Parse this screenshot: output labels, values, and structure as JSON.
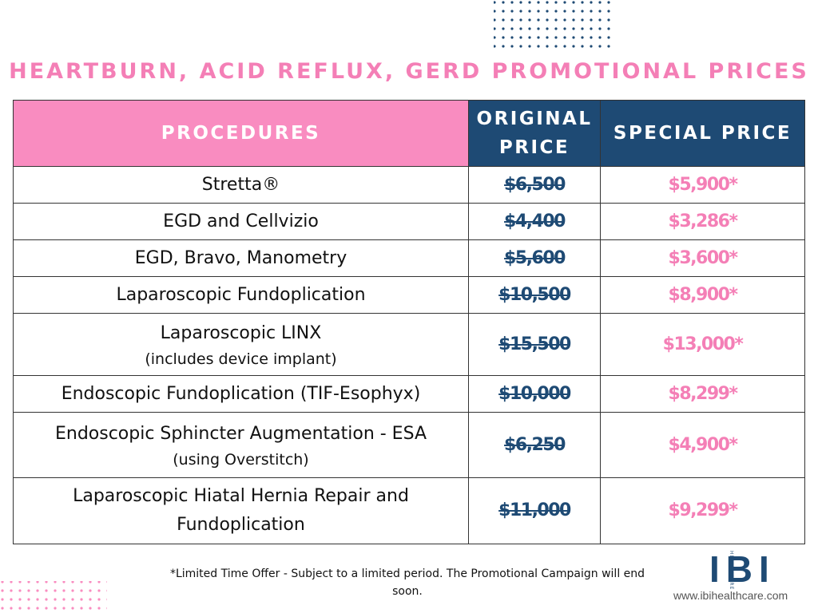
{
  "header": {
    "title": "HEARTBURN, ACID REFLUX, GERD PROMOTIONAL PRICES"
  },
  "table": {
    "columns": [
      "PROCEDURES",
      "ORIGINAL PRICE",
      "SPECIAL PRICE"
    ],
    "rows": [
      {
        "procedure": "Stretta®",
        "original": "$6,500",
        "special": "$5,900*"
      },
      {
        "procedure": "EGD and Cellvizio",
        "original": "$4,400",
        "special": "$3,286*"
      },
      {
        "procedure": "EGD, Bravo, Manometry",
        "original": "$5,600",
        "special": "$3,600*"
      },
      {
        "procedure": "Laparoscopic Fundoplication",
        "original": "$10,500",
        "special": "$8,900*"
      },
      {
        "procedure": "Laparoscopic LINX",
        "note": "(includes device implant)",
        "original": "$15,500",
        "special": "$13,000*"
      },
      {
        "procedure": "Endoscopic Fundoplication (TIF-Esophyx)",
        "original": "$10,000",
        "special": "$8,299*"
      },
      {
        "procedure": "Endoscopic Sphincter Augmentation - ESA",
        "note": "(using Overstitch)",
        "original": "$6,250",
        "special": "$4,900*"
      },
      {
        "procedure": "Laparoscopic Hiatal Hernia Repair and Fundoplication",
        "original": "$11,000",
        "special": "$9,299*"
      }
    ]
  },
  "footer": {
    "note": "*Limited Time Offer - Subject to a limited period. The Promotional Campaign will end soon.",
    "logo": "IBI",
    "logo_subtext": "HEALTHCARE",
    "website": "www.ibihealthcare.com"
  }
}
